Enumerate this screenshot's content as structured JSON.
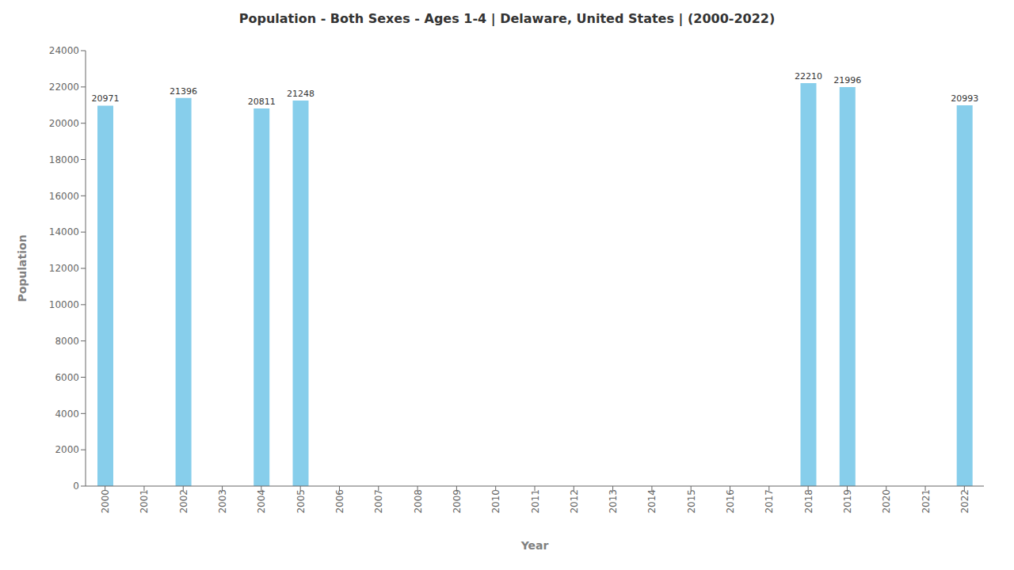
{
  "chart_data": {
    "type": "bar",
    "title": "Population - Both Sexes - Ages 1-4 | Delaware, United States |  (2000-2022)",
    "xlabel": "Year",
    "ylabel": "Population",
    "categories": [
      "2000",
      "2001",
      "2002",
      "2003",
      "2004",
      "2005",
      "2006",
      "2007",
      "2008",
      "2009",
      "2010",
      "2011",
      "2012",
      "2013",
      "2014",
      "2015",
      "2016",
      "2017",
      "2018",
      "2019",
      "2020",
      "2021",
      "2022"
    ],
    "values": [
      20971,
      0,
      21396,
      0,
      20811,
      21248,
      0,
      0,
      0,
      0,
      0,
      0,
      0,
      0,
      0,
      0,
      0,
      0,
      22210,
      21996,
      0,
      0,
      20993
    ],
    "color": "#87CEEB",
    "ylim": [
      0,
      24000
    ],
    "yticks": [
      0,
      2000,
      4000,
      6000,
      8000,
      10000,
      12000,
      14000,
      16000,
      18000,
      20000,
      22000,
      24000
    ],
    "grid": false,
    "data_labels": true
  }
}
